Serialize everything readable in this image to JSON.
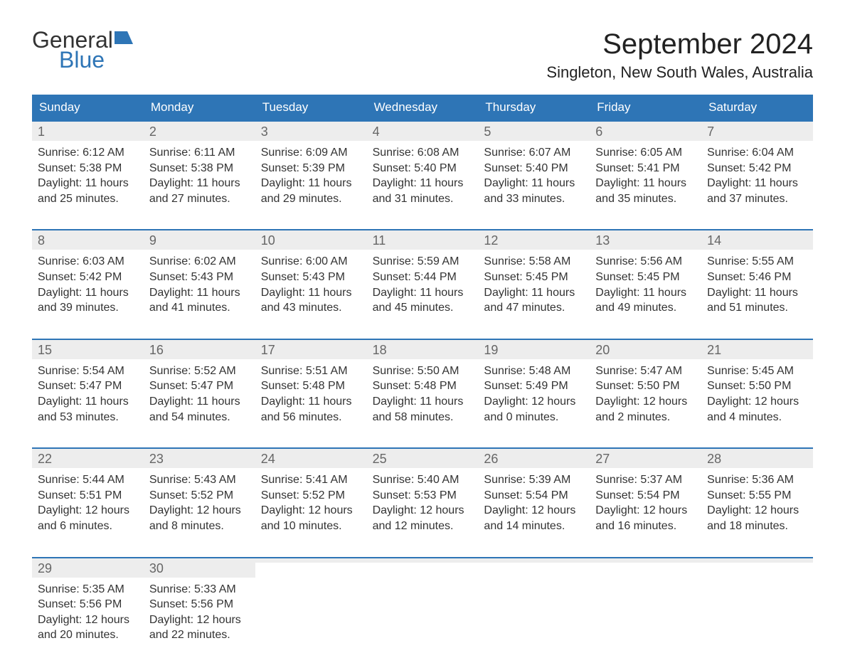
{
  "brand": {
    "word1": "General",
    "word2": "Blue"
  },
  "header": {
    "title": "September 2024",
    "location": "Singleton, New South Wales, Australia"
  },
  "colors": {
    "header_blue": "#2e75b6",
    "row_gray": "#ededed",
    "text": "#333333",
    "daynum": "#666666",
    "bg": "#ffffff"
  },
  "layout": {
    "columns": 7,
    "rows": 5
  },
  "daynames": [
    "Sunday",
    "Monday",
    "Tuesday",
    "Wednesday",
    "Thursday",
    "Friday",
    "Saturday"
  ],
  "weeks": [
    [
      {
        "n": "1",
        "sunrise": "Sunrise: 6:12 AM",
        "sunset": "Sunset: 5:38 PM",
        "dl1": "Daylight: 11 hours",
        "dl2": "and 25 minutes."
      },
      {
        "n": "2",
        "sunrise": "Sunrise: 6:11 AM",
        "sunset": "Sunset: 5:38 PM",
        "dl1": "Daylight: 11 hours",
        "dl2": "and 27 minutes."
      },
      {
        "n": "3",
        "sunrise": "Sunrise: 6:09 AM",
        "sunset": "Sunset: 5:39 PM",
        "dl1": "Daylight: 11 hours",
        "dl2": "and 29 minutes."
      },
      {
        "n": "4",
        "sunrise": "Sunrise: 6:08 AM",
        "sunset": "Sunset: 5:40 PM",
        "dl1": "Daylight: 11 hours",
        "dl2": "and 31 minutes."
      },
      {
        "n": "5",
        "sunrise": "Sunrise: 6:07 AM",
        "sunset": "Sunset: 5:40 PM",
        "dl1": "Daylight: 11 hours",
        "dl2": "and 33 minutes."
      },
      {
        "n": "6",
        "sunrise": "Sunrise: 6:05 AM",
        "sunset": "Sunset: 5:41 PM",
        "dl1": "Daylight: 11 hours",
        "dl2": "and 35 minutes."
      },
      {
        "n": "7",
        "sunrise": "Sunrise: 6:04 AM",
        "sunset": "Sunset: 5:42 PM",
        "dl1": "Daylight: 11 hours",
        "dl2": "and 37 minutes."
      }
    ],
    [
      {
        "n": "8",
        "sunrise": "Sunrise: 6:03 AM",
        "sunset": "Sunset: 5:42 PM",
        "dl1": "Daylight: 11 hours",
        "dl2": "and 39 minutes."
      },
      {
        "n": "9",
        "sunrise": "Sunrise: 6:02 AM",
        "sunset": "Sunset: 5:43 PM",
        "dl1": "Daylight: 11 hours",
        "dl2": "and 41 minutes."
      },
      {
        "n": "10",
        "sunrise": "Sunrise: 6:00 AM",
        "sunset": "Sunset: 5:43 PM",
        "dl1": "Daylight: 11 hours",
        "dl2": "and 43 minutes."
      },
      {
        "n": "11",
        "sunrise": "Sunrise: 5:59 AM",
        "sunset": "Sunset: 5:44 PM",
        "dl1": "Daylight: 11 hours",
        "dl2": "and 45 minutes."
      },
      {
        "n": "12",
        "sunrise": "Sunrise: 5:58 AM",
        "sunset": "Sunset: 5:45 PM",
        "dl1": "Daylight: 11 hours",
        "dl2": "and 47 minutes."
      },
      {
        "n": "13",
        "sunrise": "Sunrise: 5:56 AM",
        "sunset": "Sunset: 5:45 PM",
        "dl1": "Daylight: 11 hours",
        "dl2": "and 49 minutes."
      },
      {
        "n": "14",
        "sunrise": "Sunrise: 5:55 AM",
        "sunset": "Sunset: 5:46 PM",
        "dl1": "Daylight: 11 hours",
        "dl2": "and 51 minutes."
      }
    ],
    [
      {
        "n": "15",
        "sunrise": "Sunrise: 5:54 AM",
        "sunset": "Sunset: 5:47 PM",
        "dl1": "Daylight: 11 hours",
        "dl2": "and 53 minutes."
      },
      {
        "n": "16",
        "sunrise": "Sunrise: 5:52 AM",
        "sunset": "Sunset: 5:47 PM",
        "dl1": "Daylight: 11 hours",
        "dl2": "and 54 minutes."
      },
      {
        "n": "17",
        "sunrise": "Sunrise: 5:51 AM",
        "sunset": "Sunset: 5:48 PM",
        "dl1": "Daylight: 11 hours",
        "dl2": "and 56 minutes."
      },
      {
        "n": "18",
        "sunrise": "Sunrise: 5:50 AM",
        "sunset": "Sunset: 5:48 PM",
        "dl1": "Daylight: 11 hours",
        "dl2": "and 58 minutes."
      },
      {
        "n": "19",
        "sunrise": "Sunrise: 5:48 AM",
        "sunset": "Sunset: 5:49 PM",
        "dl1": "Daylight: 12 hours",
        "dl2": "and 0 minutes."
      },
      {
        "n": "20",
        "sunrise": "Sunrise: 5:47 AM",
        "sunset": "Sunset: 5:50 PM",
        "dl1": "Daylight: 12 hours",
        "dl2": "and 2 minutes."
      },
      {
        "n": "21",
        "sunrise": "Sunrise: 5:45 AM",
        "sunset": "Sunset: 5:50 PM",
        "dl1": "Daylight: 12 hours",
        "dl2": "and 4 minutes."
      }
    ],
    [
      {
        "n": "22",
        "sunrise": "Sunrise: 5:44 AM",
        "sunset": "Sunset: 5:51 PM",
        "dl1": "Daylight: 12 hours",
        "dl2": "and 6 minutes."
      },
      {
        "n": "23",
        "sunrise": "Sunrise: 5:43 AM",
        "sunset": "Sunset: 5:52 PM",
        "dl1": "Daylight: 12 hours",
        "dl2": "and 8 minutes."
      },
      {
        "n": "24",
        "sunrise": "Sunrise: 5:41 AM",
        "sunset": "Sunset: 5:52 PM",
        "dl1": "Daylight: 12 hours",
        "dl2": "and 10 minutes."
      },
      {
        "n": "25",
        "sunrise": "Sunrise: 5:40 AM",
        "sunset": "Sunset: 5:53 PM",
        "dl1": "Daylight: 12 hours",
        "dl2": "and 12 minutes."
      },
      {
        "n": "26",
        "sunrise": "Sunrise: 5:39 AM",
        "sunset": "Sunset: 5:54 PM",
        "dl1": "Daylight: 12 hours",
        "dl2": "and 14 minutes."
      },
      {
        "n": "27",
        "sunrise": "Sunrise: 5:37 AM",
        "sunset": "Sunset: 5:54 PM",
        "dl1": "Daylight: 12 hours",
        "dl2": "and 16 minutes."
      },
      {
        "n": "28",
        "sunrise": "Sunrise: 5:36 AM",
        "sunset": "Sunset: 5:55 PM",
        "dl1": "Daylight: 12 hours",
        "dl2": "and 18 minutes."
      }
    ],
    [
      {
        "n": "29",
        "sunrise": "Sunrise: 5:35 AM",
        "sunset": "Sunset: 5:56 PM",
        "dl1": "Daylight: 12 hours",
        "dl2": "and 20 minutes."
      },
      {
        "n": "30",
        "sunrise": "Sunrise: 5:33 AM",
        "sunset": "Sunset: 5:56 PM",
        "dl1": "Daylight: 12 hours",
        "dl2": "and 22 minutes."
      },
      {
        "empty": true
      },
      {
        "empty": true
      },
      {
        "empty": true
      },
      {
        "empty": true
      },
      {
        "empty": true
      }
    ]
  ]
}
